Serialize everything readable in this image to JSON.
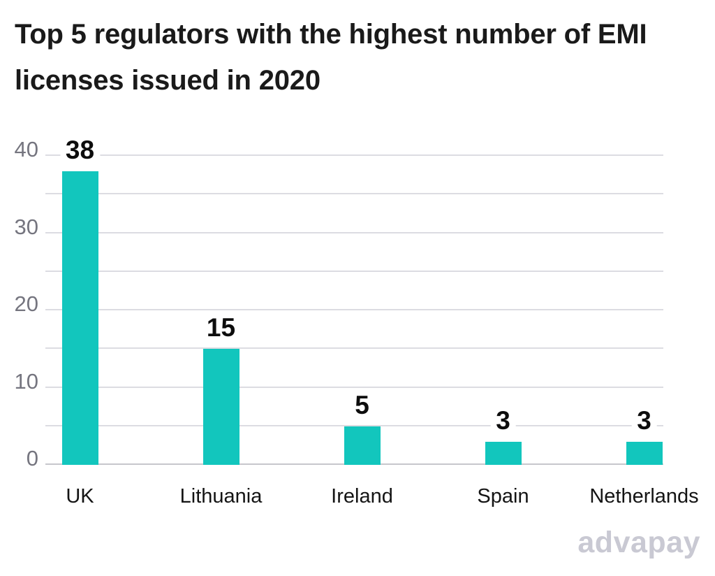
{
  "title_lines": [
    "Top 5 regulators with the highest number of EMI",
    "licenses issued in 2020"
  ],
  "watermark": "advapay",
  "colors": {
    "bar": "#12c6bd",
    "gridline": "#dcdce2",
    "baseline": "#c6c6cc",
    "y_label": "#75757f",
    "value_label": "#0d0d0d",
    "title": "#1a1a1a",
    "watermark": "#c9c9d3",
    "background": "#ffffff"
  },
  "chart_data": {
    "type": "bar",
    "title": "Top 5 regulators with the highest number of EMI licenses issued in 2020",
    "categories": [
      "UK",
      "Lithuania",
      "Ireland",
      "Spain",
      "Netherlands"
    ],
    "values": [
      38,
      15,
      5,
      3,
      3
    ],
    "xlabel": "",
    "ylabel": "",
    "ylim": [
      0,
      40
    ],
    "ytick_labels": [
      0,
      10,
      20,
      30,
      40
    ],
    "grid_step": 5,
    "grid": true,
    "legend": false,
    "bar_color": "#12c6bd",
    "value_labels_shown": true
  }
}
